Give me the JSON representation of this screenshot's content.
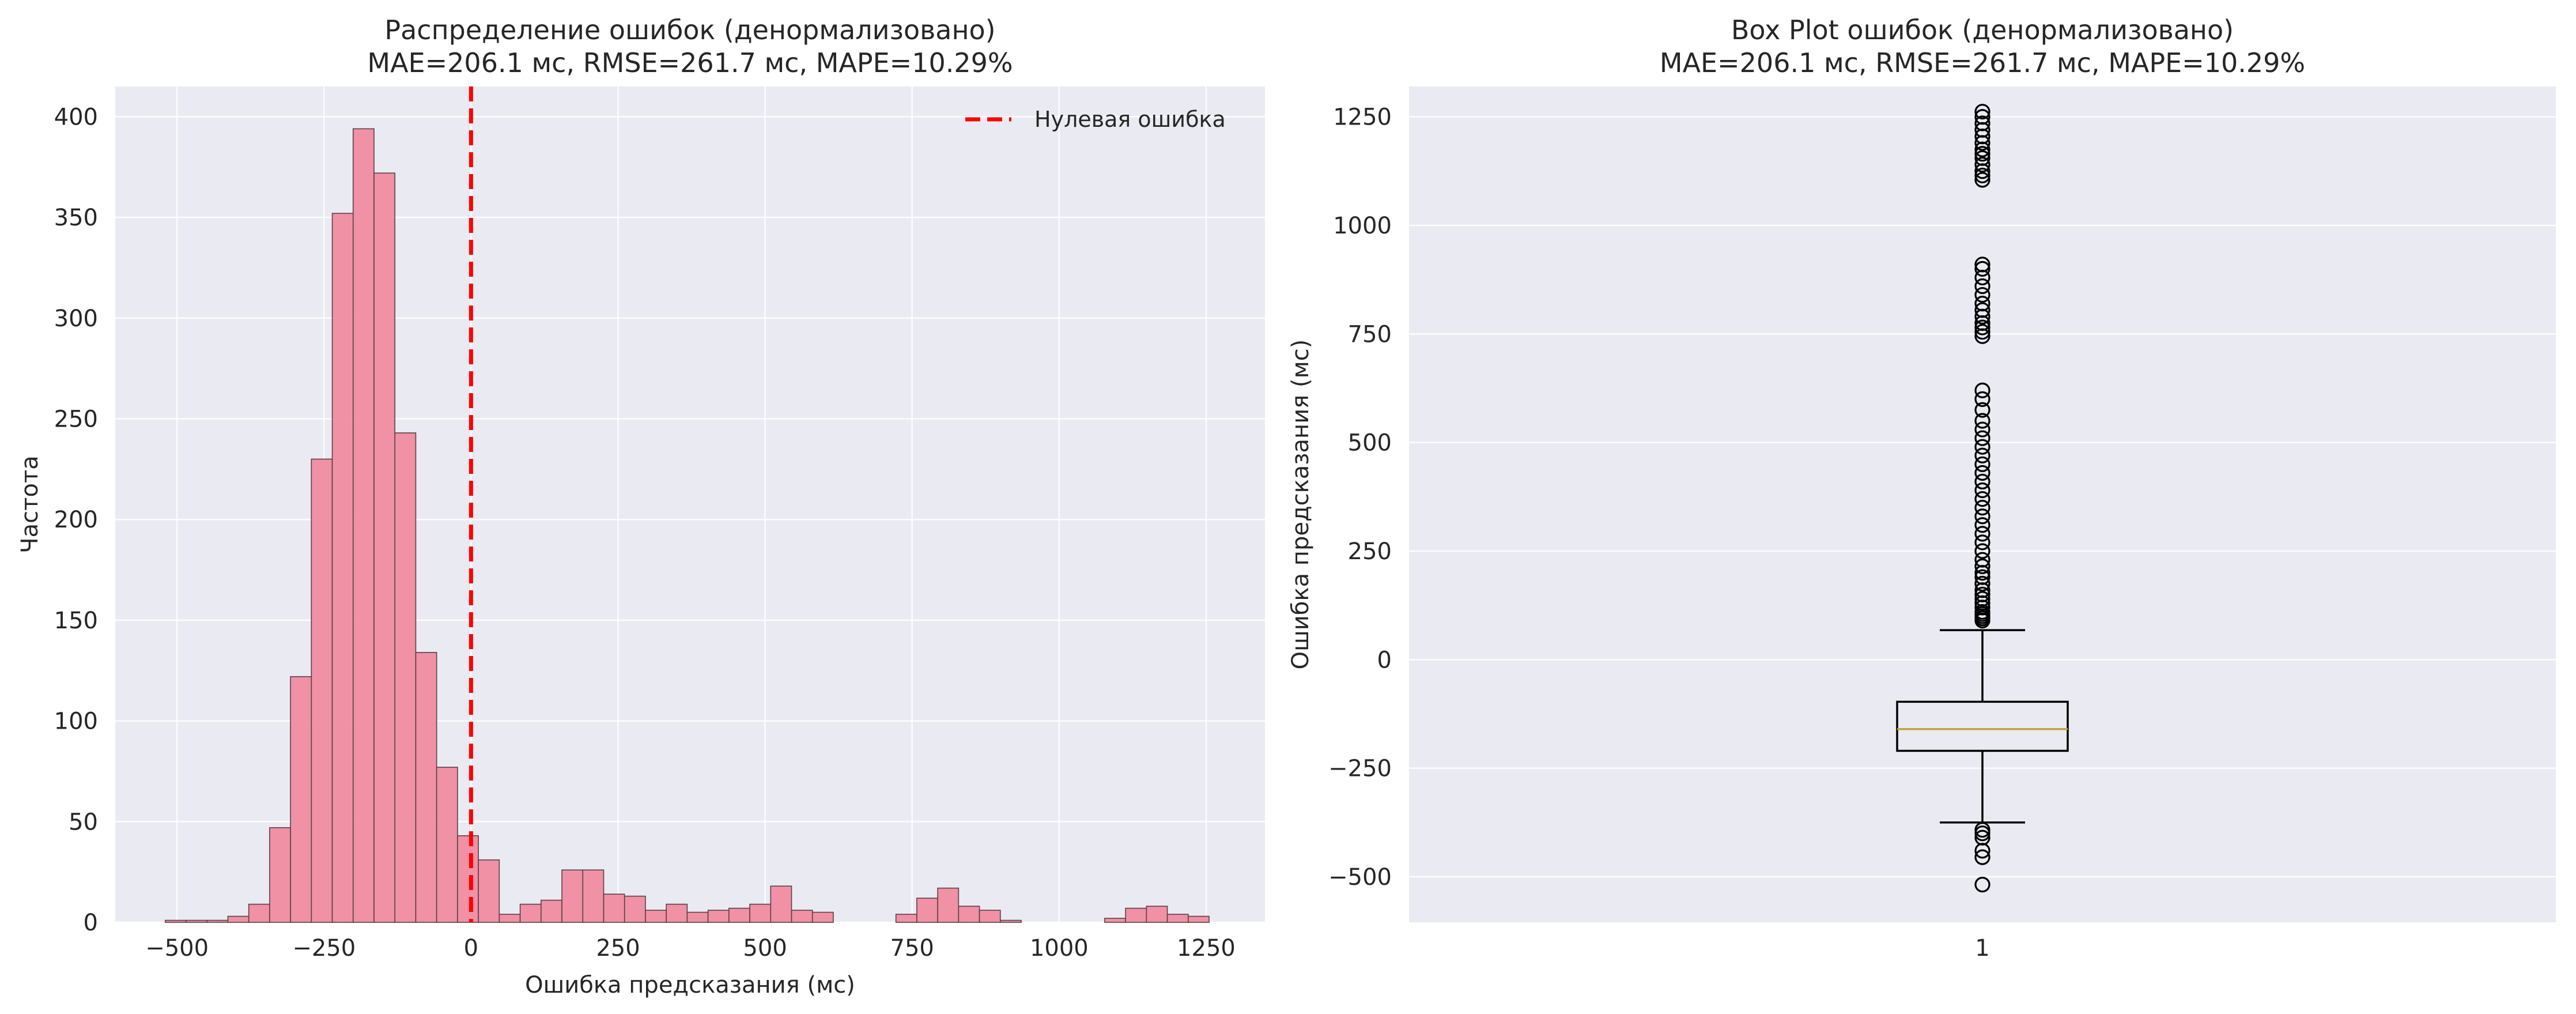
{
  "chart_data": [
    {
      "type": "bar",
      "title": "Распределение ошибок (денормализовано)",
      "subtitle": "MAE=206.1 мс, RMSE=261.7 мс, MAPE=10.29%",
      "xlabel": "Ошибка предсказания (мс)",
      "ylabel": "Частота",
      "xlim": [
        -605,
        1350
      ],
      "ylim": [
        0,
        415
      ],
      "xticks": [
        -500,
        -250,
        0,
        250,
        500,
        750,
        1000,
        1250
      ],
      "yticks": [
        0,
        50,
        100,
        150,
        200,
        250,
        300,
        350,
        400
      ],
      "grid": true,
      "bin_width": 35.5,
      "bin_start": -520,
      "counts": [
        1,
        1,
        1,
        3,
        9,
        47,
        122,
        230,
        352,
        394,
        372,
        243,
        134,
        77,
        43,
        31,
        4,
        9,
        11,
        26,
        26,
        14,
        13,
        6,
        9,
        5,
        6,
        7,
        9,
        18,
        6,
        5,
        0,
        0,
        0,
        4,
        12,
        17,
        8,
        6,
        1,
        0,
        0,
        0,
        0,
        2,
        7,
        8,
        4,
        3
      ],
      "bar_color": "#f08ca0",
      "reference_line": {
        "x": 0,
        "label": "Нулевая ошибка",
        "color": "#ff0000",
        "style": "dashed"
      },
      "legend_position": "top-right"
    },
    {
      "type": "box",
      "title": "Box Plot ошибок (денормализовано)",
      "subtitle": "MAE=206.1 мс, RMSE=261.7 мс, MAPE=10.29%",
      "xlabel": "",
      "ylabel": "Ошибка предсказания (мс)",
      "ylim": [
        -605,
        1320
      ],
      "yticks": [
        -500,
        -250,
        0,
        250,
        500,
        750,
        1000,
        1250
      ],
      "xtick_labels": [
        "1"
      ],
      "grid": true,
      "box": {
        "whisker_low": -375,
        "q1": -210,
        "median": -160,
        "q3": -97,
        "whisker_high": 68
      },
      "median_color": "#c8a040",
      "outliers": [
        -518,
        -455,
        -440,
        -410,
        -400,
        -392,
        90,
        95,
        100,
        105,
        110,
        120,
        130,
        140,
        150,
        160,
        175,
        190,
        200,
        215,
        230,
        250,
        270,
        290,
        310,
        330,
        350,
        370,
        390,
        410,
        430,
        450,
        470,
        490,
        510,
        530,
        550,
        575,
        600,
        620,
        745,
        755,
        765,
        775,
        790,
        805,
        820,
        840,
        860,
        880,
        900,
        910,
        1105,
        1115,
        1125,
        1140,
        1155,
        1165,
        1175,
        1190,
        1205,
        1220,
        1235,
        1250,
        1262
      ]
    }
  ]
}
